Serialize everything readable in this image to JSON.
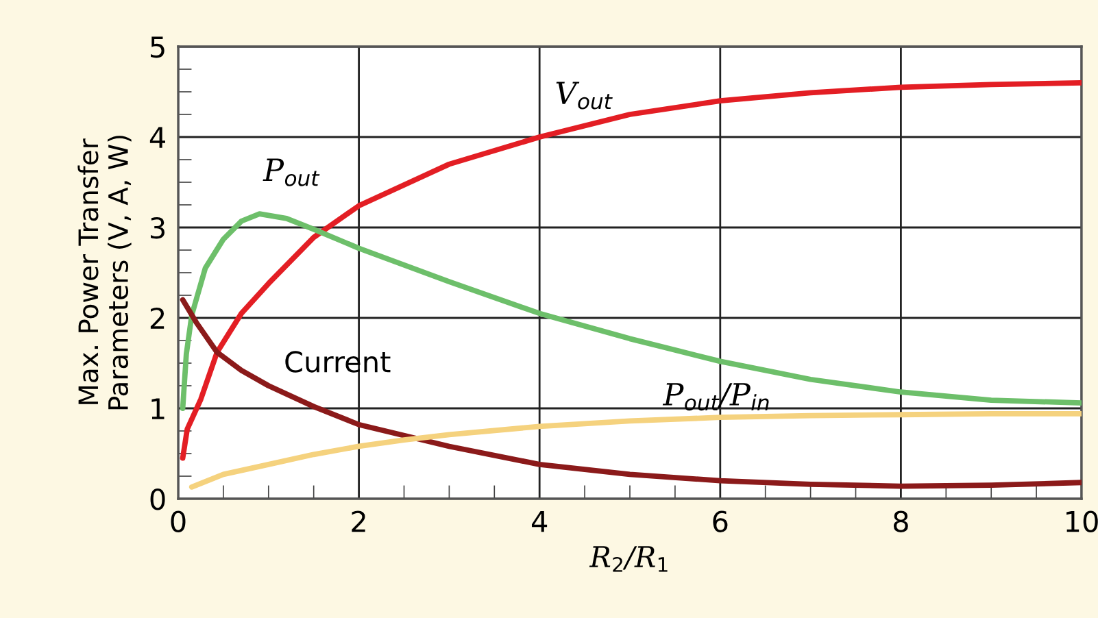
{
  "chart_data": {
    "type": "line",
    "xlabel": "R$_{2}$/R$_{1}$",
    "ylabel": "Max. Power Transfer\nParameters (V, A, W)",
    "xlim": [
      0,
      10
    ],
    "ylim": [
      0,
      5
    ],
    "xticks": [
      0,
      2,
      4,
      6,
      8,
      10
    ],
    "yticks": [
      0,
      1,
      2,
      3,
      4,
      5
    ],
    "grid": true,
    "marker": "none",
    "line_style": "solid",
    "series": [
      {
        "name": "V$_{out}$",
        "color": "#e31e24",
        "x": [
          0.05,
          0.1,
          0.25,
          0.43,
          0.7,
          1,
          1.5,
          2,
          3,
          4,
          5,
          6,
          7,
          8,
          9,
          10
        ],
        "values": [
          0.45,
          0.77,
          1.1,
          1.62,
          2.05,
          2.38,
          2.89,
          3.24,
          3.7,
          4.0,
          4.25,
          4.4,
          4.49,
          4.55,
          4.58,
          4.6
        ]
      },
      {
        "name": "P$_{out}$",
        "color": "#6dbf6a",
        "x": [
          0.05,
          0.09,
          0.15,
          0.3,
          0.5,
          0.7,
          0.9,
          1.2,
          1.5,
          2,
          3,
          4,
          5,
          6,
          7,
          8,
          9,
          10
        ],
        "values": [
          1.0,
          1.6,
          2.03,
          2.55,
          2.87,
          3.07,
          3.15,
          3.1,
          2.98,
          2.77,
          2.4,
          2.05,
          1.77,
          1.52,
          1.32,
          1.18,
          1.09,
          1.06
        ]
      },
      {
        "name": "Current",
        "color": "#8b1a1a",
        "x": [
          0.05,
          0.2,
          0.43,
          0.7,
          1,
          1.5,
          2,
          3,
          4,
          5,
          6,
          7,
          8,
          9,
          10
        ],
        "values": [
          2.2,
          1.95,
          1.62,
          1.42,
          1.25,
          1.02,
          0.82,
          0.58,
          0.38,
          0.27,
          0.2,
          0.16,
          0.14,
          0.15,
          0.18
        ]
      },
      {
        "name": "P$_{out}$/P$_{in}$",
        "color": "#f5d27e",
        "x": [
          0.15,
          0.5,
          1,
          1.5,
          2,
          2.5,
          3,
          4,
          5,
          6,
          7,
          8,
          9,
          10
        ],
        "values": [
          0.13,
          0.27,
          0.38,
          0.49,
          0.58,
          0.65,
          0.71,
          0.8,
          0.86,
          0.9,
          0.92,
          0.93,
          0.94,
          0.94
        ]
      }
    ]
  }
}
